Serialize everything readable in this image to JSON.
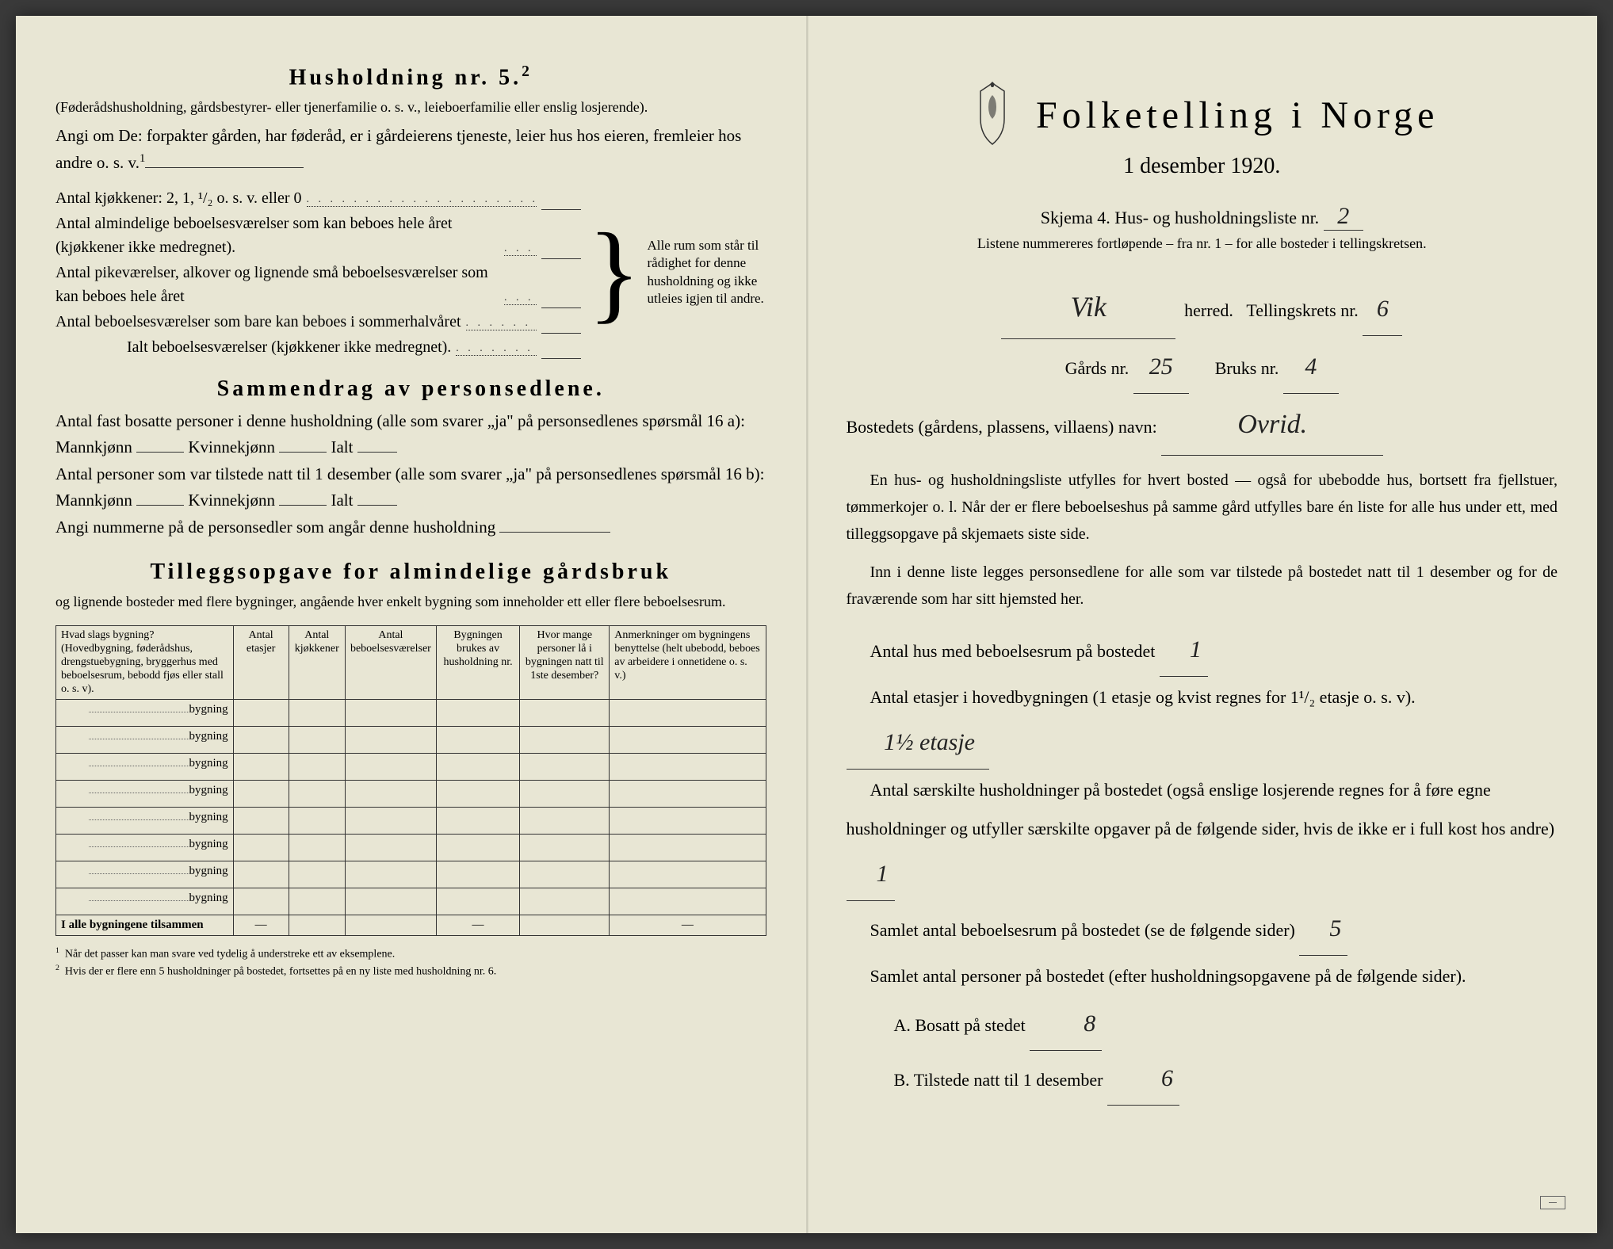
{
  "colors": {
    "paper": "#e8e6d4",
    "ink": "#222222",
    "border": "#333333"
  },
  "left": {
    "husholdning_title": "Husholdning nr. 5.",
    "husholdning_sup": "2",
    "intro_paren": "(Føderådshusholdning, gårdsbestyrer- eller tjenerfamilie o. s. v., leieboerfamilie eller enslig losjerende).",
    "angi_line": "Angi om De: forpakter gården, har føderåd, er i gårdeierens tjeneste, leier hus hos eieren, fremleier hos andre o. s. v.",
    "angi_sup": "1",
    "kitchen_label": "Antal kjøkkener: 2, 1, ¹/₂ o. s. v. eller 0",
    "rooms_labels": [
      "Antal almindelige beboelsesværelser som kan beboes hele året (kjøkkener ikke medregnet).",
      "Antal pikeværelser, alkover og lignende små beboelsesværelser som kan beboes hele året",
      "Antal beboelsesværelser som bare kan beboes i sommerhalvåret",
      "Ialt beboelsesværelser (kjøkkener ikke medregnet)."
    ],
    "brace_text": "Alle rum som står til rådighet for denne husholdning og ikke utleies igjen til andre.",
    "sammendrag_title": "Sammendrag av personsedlene.",
    "sammendrag_l1": "Antal fast bosatte personer i denne husholdning (alle som svarer „ja\" på personsedlenes spørsmål 16 a): Mannkjønn",
    "kvinne": "Kvinnekjønn",
    "ialt": "Ialt",
    "sammendrag_l2": "Antal personer som var tilstede natt til 1 desember (alle som svarer „ja\" på personsedlenes spørsmål 16 b): Mannkjønn",
    "angi_nummerne": "Angi nummerne på de personsedler som angår denne husholdning",
    "tillegg_title": "Tilleggsopgave for almindelige gårdsbruk",
    "tillegg_sub": "og lignende bosteder med flere bygninger, angående hver enkelt bygning som inneholder ett eller flere beboelsesrum.",
    "table": {
      "headers": [
        "Hvad slags bygning?\n(Hovedbygning, føderådshus, drengstuebygning, bryggerhus med beboelsesrum, bebodd fjøs eller stall o. s. v).",
        "Antal etasjer",
        "Antal kjøkkener",
        "Antal beboelsesværelser",
        "Bygningen brukes av husholdning nr.",
        "Hvor mange personer lå i bygningen natt til 1ste desember?",
        "Anmerkninger om bygningens benyttelse (helt ubebodd, beboes av arbeidere i onnetidene o. s. v.)"
      ],
      "bygning_label": "bygning",
      "row_count": 8,
      "totals_label": "I alle bygningene tilsammen"
    },
    "footnote1": "Når det passer kan man svare ved tydelig å understreke ett av eksemplene.",
    "footnote2": "Hvis der er flere enn 5 husholdninger på bostedet, fortsettes på en ny liste med husholdning nr. 6."
  },
  "right": {
    "main_title": "Folketelling i Norge",
    "date": "1 desember 1920.",
    "skjema_label": "Skjema 4.  Hus- og husholdningsliste nr.",
    "skjema_nr": "2",
    "listene": "Listene nummereres fortløpende – fra nr. 1 – for alle bosteder i tellingskretsen.",
    "herred_value": "Vik",
    "herred_label": "herred.",
    "tellingskrets_label": "Tellingskrets nr.",
    "tellingskrets_nr": "6",
    "gards_label": "Gårds nr.",
    "gards_nr": "25",
    "bruks_label": "Bruks nr.",
    "bruks_nr": "4",
    "bosted_label": "Bostedets (gårdens, plassens, villaens) navn:",
    "bosted_value": "Ovrid.",
    "para1": "En hus- og husholdningsliste utfylles for hvert bosted — også for ubebodde hus, bortsett fra fjellstuer, tømmerkojer o. l.  Når der er flere beboelseshus på samme gård utfylles bare én liste for alle hus under ett, med tilleggsopgave på skjemaets siste side.",
    "para2": "Inn i denne liste legges personsedlene for alle som var tilstede på bostedet natt til 1 desember og for de fraværende som har sitt hjemsted her.",
    "q1_label": "Antal hus med beboelsesrum på bostedet",
    "q1_val": "1",
    "q2_label_a": "Antal etasjer i hovedbygningen (1 etasje og kvist regnes for 1¹/₂ etasje o. s. v).",
    "q2_val": "1½ etasje",
    "q3_label": "Antal særskilte husholdninger på bostedet (også enslige losjerende regnes for å føre egne husholdninger og utfyller særskilte opgaver på de følgende sider, hvis de ikke er i full kost hos andre)",
    "q3_val": "1",
    "q4_label": "Samlet antal beboelsesrum på bostedet (se de følgende sider)",
    "q4_val": "5",
    "q5_label": "Samlet antal personer på bostedet (efter husholdningsopgavene på de følgende sider).",
    "qA_label": "A.  Bosatt på stedet",
    "qA_val": "8",
    "qB_label": "B.  Tilstede natt til 1 desember",
    "qB_val": "6"
  }
}
